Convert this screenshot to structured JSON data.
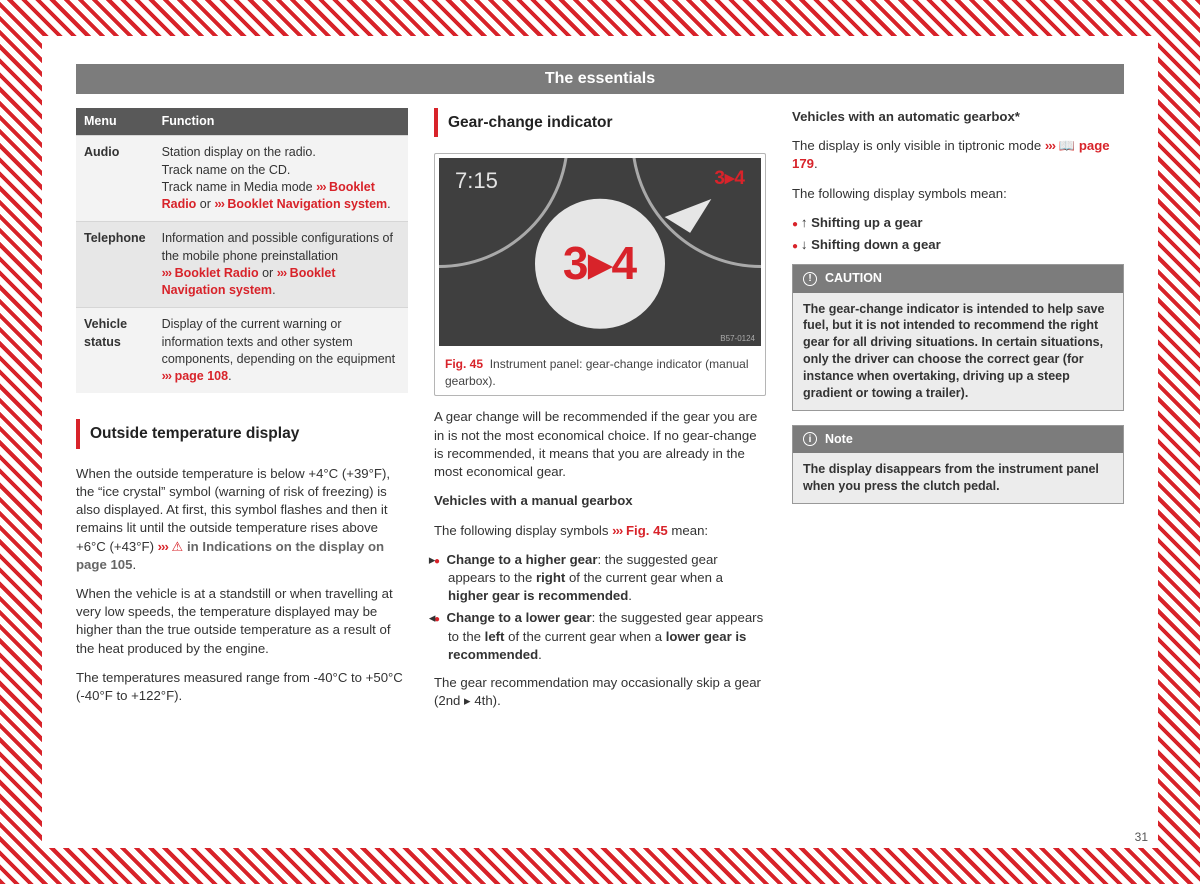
{
  "header": "The essentials",
  "page_number": "31",
  "table": {
    "head_menu": "Menu",
    "head_func": "Function",
    "rows": [
      {
        "menu": "Audio",
        "func_line1": "Station display on the radio.",
        "func_line2": "Track name on the CD.",
        "func_line3a": "Track name in Media mode ",
        "func_link1": "Booklet Radio",
        "func_mid": " or ",
        "func_link2": "Booklet Navigation system"
      },
      {
        "menu": "Telephone",
        "func_line1": "Information and possible configurations of the mobile phone preinstallation",
        "func_link1": "Booklet Radio",
        "func_mid": " or ",
        "func_link2": "Booklet Navigation system"
      },
      {
        "menu": "Vehicle status",
        "func_line1": "Display of the current warning or information texts and other system components, depending on the equipment",
        "func_link1": "page 108"
      }
    ]
  },
  "col1": {
    "section_head": "Outside temperature display",
    "p1a": "When the outside temperature is below +4°C (+39°F), the “ice crystal” symbol (warning of risk of freezing) is also displayed. At first, this symbol flashes and then it remains lit until the outside temperature rises above +6°C (+43°F) ",
    "p1b": " in Indications on the display on page 105",
    "p2": "When the vehicle is at a standstill or when travelling at very low speeds, the temperature displayed may be higher than the true outside temperature as a result of the heat produced by the engine.",
    "p3": "The temperatures measured range from -40°C to +50°C (-40°F to +122°F)."
  },
  "col2": {
    "section_head": "Gear-change indicator",
    "fig": {
      "time": "7:15",
      "top_right": "3▸4",
      "bubble": "3▸4",
      "code": "B57-0124",
      "caption_ref": "Fig. 45",
      "caption_text": "Instrument panel: gear-change indicator (manual gearbox)."
    },
    "p1": "A gear change will be recommended if the gear you are in is not the most economical choice. If no gear-change is recommended, it means that you are already in the most economical gear.",
    "h_manual": "Vehicles with a manual gearbox",
    "p2a": "The following display symbols ",
    "p2b": "Fig. 45",
    "p2c": " mean:",
    "bul1_sym": "▸",
    "bul1_b": "Change to a higher gear",
    "bul1_t1": ": the suggested gear appears to the ",
    "bul1_b2": "right",
    "bul1_t2": " of the current gear when a ",
    "bul1_b3": "higher gear is recommended",
    "bul2_sym": "◂",
    "bul2_b": "Change to a lower gear",
    "bul2_t1": ": the suggested gear appears to the ",
    "bul2_b2": "left",
    "bul2_t2": " of the current gear when a ",
    "bul2_b3": "lower gear is recommended",
    "p3": "The gear recommendation may occasionally skip a gear (2nd ▸ 4th)."
  },
  "col3": {
    "h_auto": "Vehicles with an automatic gearbox*",
    "p1a": "The display is only visible in tiptronic mode ",
    "p1b": "page 179",
    "p2": "The following display symbols mean:",
    "bul1": "↑ Shifting up a gear",
    "bul2": "↓ Shifting down a gear",
    "caution_head": "CAUTION",
    "caution_body": "The gear-change indicator is intended to help save fuel, but it is not intended to recommend the right gear for all driving situations. In certain situations, only the driver can choose the correct gear (for instance when overtaking, driving up a steep gradient or towing a trailer).",
    "note_head": "Note",
    "note_body": "The display disappears from the instrument panel when you press the clutch pedal."
  }
}
